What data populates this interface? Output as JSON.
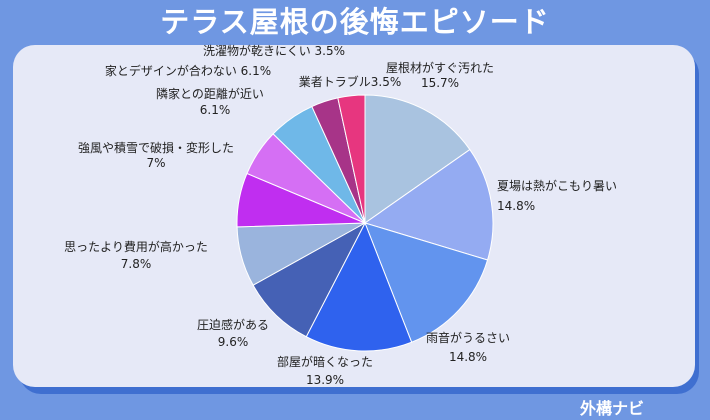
{
  "header": {
    "title": "テラス屋根の後悔エピソード"
  },
  "footer": {
    "brand": "外構ナビ"
  },
  "chart_data": {
    "type": "pie",
    "title": "テラス屋根の後悔エピソード",
    "start": "12 o'clock, clockwise",
    "slices": [
      {
        "label": "屋根材がすぐ汚れた",
        "value": 15.7,
        "pct_label": "15.7%",
        "color": "#a9c3e0"
      },
      {
        "label": "夏場は熱がこもり暑い",
        "value": 14.8,
        "pct_label": "14.8%",
        "color": "#94abf2"
      },
      {
        "label": "雨音がうるさい",
        "value": 14.8,
        "pct_label": "14.8%",
        "color": "#6294ee"
      },
      {
        "label": "部屋が暗くなった",
        "value": 13.9,
        "pct_label": "13.9%",
        "color": "#2f62ee"
      },
      {
        "label": "圧迫感がある",
        "value": 9.6,
        "pct_label": "9.6%",
        "color": "#4561b5"
      },
      {
        "label": "思ったより費用が高かった",
        "value": 7.8,
        "pct_label": "7.8%",
        "color": "#9ab4dd"
      },
      {
        "label": "強風や積雪で破損・変形した",
        "value": 7.0,
        "pct_label": "7%",
        "color": "#c02ef0"
      },
      {
        "label": "隣家との距離が近い",
        "value": 6.1,
        "pct_label": "6.1%",
        "color": "#d56ff4"
      },
      {
        "label": "家とデザインが合わない",
        "value": 6.1,
        "pct_label": "6.1%",
        "color": "#6fb8e8"
      },
      {
        "label": "洗濯物が乾きにくい",
        "value": 3.5,
        "pct_label": "3.5%",
        "color": "#a73488"
      },
      {
        "label": "業者トラブル",
        "value": 3.5,
        "pct_label": "3.5%",
        "color": "#e7367f"
      }
    ]
  }
}
